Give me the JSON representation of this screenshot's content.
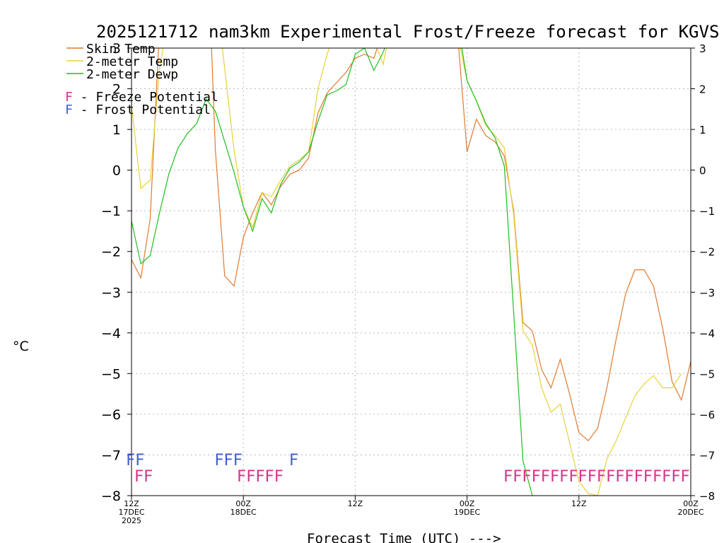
{
  "chart_data": {
    "type": "line",
    "title": "2025121712 nam3km Experimental Frost/Freeze forecast for KGVS",
    "xlabel": "Forecast Time (UTC) --->",
    "ylabel": "°C",
    "ylim": [
      -8,
      3
    ],
    "yticks": [
      3,
      2,
      1,
      0,
      -1,
      -2,
      -3,
      -4,
      -5,
      -6,
      -7,
      -8
    ],
    "xlim": [
      0,
      60
    ],
    "x_ticks": [
      {
        "x": 0,
        "lines": [
          "12Z",
          "17DEC",
          "2025"
        ]
      },
      {
        "x": 12,
        "lines": [
          "00Z",
          "18DEC"
        ]
      },
      {
        "x": 24,
        "lines": [
          "12Z"
        ]
      },
      {
        "x": 36,
        "lines": [
          "00Z",
          "19DEC"
        ]
      },
      {
        "x": 48,
        "lines": [
          "12Z"
        ]
      },
      {
        "x": 60,
        "lines": [
          "00Z",
          "20DEC"
        ]
      }
    ],
    "grid": true,
    "series": [
      {
        "name": "Skin Temp",
        "color": "#e07a2e",
        "points": [
          [
            0,
            -2.2
          ],
          [
            1,
            -2.65
          ],
          [
            2,
            -1.2
          ],
          [
            3,
            3.5
          ],
          [
            8.5,
            3.5
          ],
          [
            9,
            0.5
          ],
          [
            10,
            -2.6
          ],
          [
            11,
            -2.85
          ],
          [
            12,
            -1.65
          ],
          [
            13,
            -1.05
          ],
          [
            14,
            -0.55
          ],
          [
            15,
            -0.85
          ],
          [
            16,
            -0.4
          ],
          [
            17,
            -0.1
          ],
          [
            18,
            0.0
          ],
          [
            19,
            0.3
          ],
          [
            20,
            1.4
          ],
          [
            21,
            1.9
          ],
          [
            22,
            2.15
          ],
          [
            23,
            2.4
          ],
          [
            24,
            2.75
          ],
          [
            25,
            2.85
          ],
          [
            26,
            2.75
          ],
          [
            26.5,
            3.1
          ],
          [
            35,
            3.3
          ],
          [
            36,
            0.45
          ],
          [
            37,
            1.25
          ],
          [
            38,
            0.85
          ],
          [
            39,
            0.7
          ],
          [
            40,
            0.35
          ],
          [
            41,
            -1.0
          ],
          [
            42,
            -3.75
          ],
          [
            43,
            -3.95
          ],
          [
            44,
            -4.9
          ],
          [
            45,
            -5.35
          ],
          [
            46,
            -4.65
          ],
          [
            47,
            -5.5
          ],
          [
            48,
            -6.45
          ],
          [
            49,
            -6.65
          ],
          [
            50,
            -6.35
          ],
          [
            51,
            -5.35
          ],
          [
            52,
            -4.15
          ],
          [
            53,
            -3.05
          ],
          [
            54,
            -2.45
          ],
          [
            55,
            -2.45
          ],
          [
            56,
            -2.85
          ],
          [
            57,
            -3.9
          ],
          [
            58,
            -5.2
          ],
          [
            59,
            -5.65
          ],
          [
            60,
            -4.7
          ]
        ]
      },
      {
        "name": "2-meter Temp",
        "color": "#e8d13a",
        "points": [
          [
            0,
            1.6
          ],
          [
            1,
            -0.45
          ],
          [
            2,
            -0.25
          ],
          [
            3,
            2.5
          ],
          [
            3.8,
            3.5
          ],
          [
            9.5,
            3.5
          ],
          [
            10,
            2.5
          ],
          [
            11,
            0.5
          ],
          [
            12,
            -0.9
          ],
          [
            13,
            -1.4
          ],
          [
            14,
            -0.55
          ],
          [
            15,
            -0.65
          ],
          [
            16,
            -0.25
          ],
          [
            17,
            0.1
          ],
          [
            18,
            0.25
          ],
          [
            19,
            0.45
          ],
          [
            20,
            2.0
          ],
          [
            21,
            2.85
          ],
          [
            21.5,
            3.2
          ],
          [
            26,
            3.2
          ],
          [
            27,
            2.6
          ],
          [
            27.5,
            3.2
          ],
          [
            35,
            3.3
          ],
          [
            36,
            2.2
          ],
          [
            37,
            1.7
          ],
          [
            38,
            1.1
          ],
          [
            39,
            0.85
          ],
          [
            40,
            0.55
          ],
          [
            41,
            -1.1
          ],
          [
            42,
            -3.95
          ],
          [
            43,
            -4.3
          ],
          [
            44,
            -5.35
          ],
          [
            45,
            -5.95
          ],
          [
            46,
            -5.75
          ],
          [
            47,
            -6.7
          ],
          [
            48,
            -7.65
          ],
          [
            49,
            -7.95
          ],
          [
            50,
            -8.0
          ],
          [
            51,
            -7.1
          ],
          [
            52,
            -6.65
          ],
          [
            53,
            -6.1
          ],
          [
            54,
            -5.55
          ],
          [
            55,
            -5.25
          ],
          [
            56,
            -5.05
          ],
          [
            57,
            -5.35
          ],
          [
            58,
            -5.35
          ],
          [
            59,
            -5.0
          ]
        ]
      },
      {
        "name": "2-meter Dewp",
        "color": "#1fbf1f",
        "points": [
          [
            0,
            -1.25
          ],
          [
            1,
            -2.3
          ],
          [
            2,
            -2.1
          ],
          [
            3,
            -1.05
          ],
          [
            4,
            -0.1
          ],
          [
            5,
            0.55
          ],
          [
            6,
            0.9
          ],
          [
            7,
            1.15
          ],
          [
            8,
            1.75
          ],
          [
            9,
            1.45
          ],
          [
            10,
            0.7
          ],
          [
            11,
            -0.05
          ],
          [
            12,
            -0.9
          ],
          [
            13,
            -1.5
          ],
          [
            14,
            -0.7
          ],
          [
            15,
            -1.05
          ],
          [
            16,
            -0.35
          ],
          [
            17,
            0.05
          ],
          [
            18,
            0.2
          ],
          [
            19,
            0.45
          ],
          [
            20,
            1.2
          ],
          [
            21,
            1.85
          ],
          [
            22,
            1.95
          ],
          [
            23,
            2.1
          ],
          [
            24,
            2.85
          ],
          [
            25,
            3.0
          ],
          [
            26,
            2.45
          ],
          [
            27,
            2.9
          ],
          [
            27.5,
            3.2
          ],
          [
            35.3,
            3.2
          ],
          [
            36,
            2.2
          ],
          [
            37,
            1.7
          ],
          [
            38,
            1.15
          ],
          [
            39,
            0.8
          ],
          [
            40,
            0.1
          ],
          [
            41,
            -3.5
          ],
          [
            42,
            -7.15
          ],
          [
            43,
            -8.0
          ]
        ]
      }
    ],
    "legend": [
      {
        "label": "Skin Temp",
        "color": "#e07a2e"
      },
      {
        "label": "2-meter Temp",
        "color": "#e8d13a"
      },
      {
        "label": "2-meter Dewp",
        "color": "#1fbf1f"
      }
    ],
    "flag_legend": [
      {
        "symbol": "F",
        "label": " - Freeze Potential",
        "color": "#d6348a"
      },
      {
        "symbol": "F",
        "label": " - Frost Potential",
        "color": "#3f5fcf"
      }
    ],
    "frost_flags": {
      "text": "F",
      "color": "#3f5fcf",
      "x": [
        0,
        1,
        9.5,
        10.5,
        11.5,
        17.5
      ]
    },
    "freeze_flags": {
      "text": "F",
      "color": "#d6348a",
      "x": [
        0.9,
        1.9,
        11.9,
        12.9,
        13.9,
        14.9,
        15.9,
        40.5,
        41.5,
        42.5,
        43.5,
        44.5,
        45.5,
        46.5,
        47.5,
        48.5,
        49.5,
        50.5,
        51.5,
        52.5,
        53.5,
        54.5,
        55.5,
        56.5,
        57.5,
        58.5,
        59.5
      ]
    }
  }
}
